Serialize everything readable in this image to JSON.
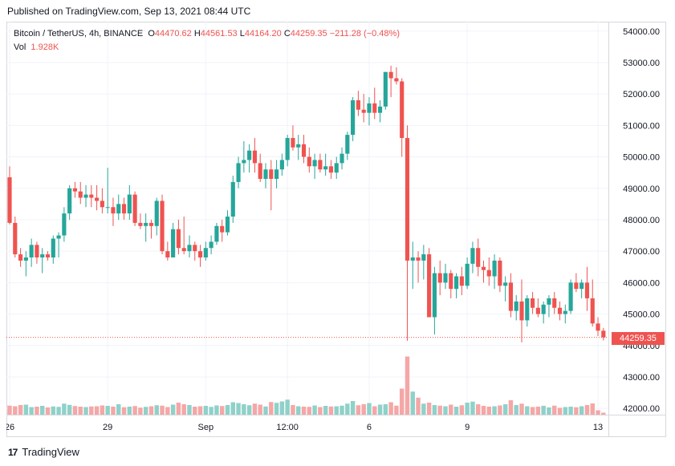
{
  "published": "Published on TradingView.com, Sep 13, 2021 08:44 UTC",
  "legend": {
    "symbol": "Bitcoin / TetherUS, 4h, BINANCE",
    "o_label": "O",
    "o": "44470.62",
    "h_label": "H",
    "h": "44561.53",
    "l_label": "L",
    "l": "44164.20",
    "c_label": "C",
    "c": "44259.35",
    "change": "−211.28 (−0.48%)",
    "vol_label": "Vol",
    "vol": "1.928K"
  },
  "last_price_label": "44259.35",
  "footer": {
    "logo": "17",
    "brand": "TradingView"
  },
  "colors": {
    "up": "#26a69a",
    "down": "#ef5350",
    "up_vol": "#8fd1c9",
    "down_vol": "#f4a7a6",
    "grid": "#f0f3fa",
    "text": "#131722"
  },
  "chart_data": {
    "type": "candlestick",
    "y_ticks": [
      "54000.00",
      "53000.00",
      "52000.00",
      "51000.00",
      "50000.00",
      "49000.00",
      "48000.00",
      "47000.00",
      "46000.00",
      "45000.00",
      "44000.00",
      "43000.00",
      "42000.00"
    ],
    "ylim": [
      41800,
      54300
    ],
    "x_ticks": [
      {
        "label": "26",
        "bar": 0
      },
      {
        "label": "29",
        "bar": 18
      },
      {
        "label": "Sep",
        "bar": 36
      },
      {
        "label": "12:00",
        "bar": 51
      },
      {
        "label": "6",
        "bar": 66
      },
      {
        "label": "9",
        "bar": 84
      },
      {
        "label": "13",
        "bar": 108
      }
    ],
    "candles": [
      [
        49350,
        49700,
        47850,
        47900
      ],
      [
        47900,
        48100,
        46800,
        46900
      ],
      [
        46900,
        47100,
        46500,
        46700
      ],
      [
        46700,
        47000,
        46200,
        46800
      ],
      [
        46800,
        47400,
        46500,
        47200
      ],
      [
        47200,
        47300,
        46600,
        46800
      ],
      [
        46800,
        47100,
        46300,
        46900
      ],
      [
        46900,
        47000,
        46700,
        46800
      ],
      [
        46800,
        47500,
        46600,
        47400
      ],
      [
        47400,
        47600,
        46800,
        47500
      ],
      [
        47500,
        48400,
        47300,
        48200
      ],
      [
        48200,
        49100,
        48000,
        49000
      ],
      [
        49000,
        49200,
        48700,
        48900
      ],
      [
        48900,
        49200,
        48500,
        48700
      ],
      [
        48700,
        49100,
        48400,
        48800
      ],
      [
        48800,
        49100,
        48400,
        48700
      ],
      [
        48700,
        49100,
        48300,
        48600
      ],
      [
        48600,
        49000,
        48200,
        48400
      ],
      [
        48400,
        49650,
        48200,
        48400
      ],
      [
        48400,
        48700,
        47800,
        48200
      ],
      [
        48200,
        48800,
        48000,
        48500
      ],
      [
        48500,
        48700,
        48000,
        48200
      ],
      [
        48200,
        49100,
        48000,
        48800
      ],
      [
        48800,
        48900,
        47800,
        47900
      ],
      [
        47900,
        48200,
        47700,
        47800
      ],
      [
        47800,
        48200,
        47300,
        47900
      ],
      [
        47900,
        48000,
        47400,
        47800
      ],
      [
        47800,
        48700,
        47500,
        48600
      ],
      [
        48600,
        48800,
        46900,
        47000
      ],
      [
        47000,
        47300,
        46700,
        46800
      ],
      [
        46800,
        47900,
        46800,
        47700
      ],
      [
        47700,
        48000,
        46900,
        47100
      ],
      [
        47100,
        48100,
        46900,
        47000
      ],
      [
        47000,
        47500,
        46800,
        47200
      ],
      [
        47200,
        47300,
        46700,
        47000
      ],
      [
        47000,
        47200,
        46500,
        46800
      ],
      [
        46800,
        47300,
        46700,
        47100
      ],
      [
        47100,
        47500,
        46900,
        47300
      ],
      [
        47300,
        47900,
        47200,
        47800
      ],
      [
        47800,
        48000,
        47300,
        47600
      ],
      [
        47600,
        48300,
        47500,
        48100
      ],
      [
        48100,
        49400,
        47900,
        49200
      ],
      [
        49200,
        50000,
        49000,
        49800
      ],
      [
        49800,
        50500,
        49500,
        49900
      ],
      [
        49900,
        50400,
        49500,
        50200
      ],
      [
        50200,
        50600,
        49500,
        49800
      ],
      [
        49800,
        50100,
        49200,
        49300
      ],
      [
        49300,
        49800,
        49000,
        49600
      ],
      [
        49600,
        49900,
        48300,
        49300
      ],
      [
        49300,
        49900,
        49000,
        49600
      ],
      [
        49600,
        50100,
        49400,
        49900
      ],
      [
        49900,
        50700,
        49700,
        50600
      ],
      [
        50600,
        51000,
        50200,
        50300
      ],
      [
        50300,
        50700,
        49900,
        50400
      ],
      [
        50400,
        50700,
        49800,
        50000
      ],
      [
        50000,
        50300,
        49500,
        49700
      ],
      [
        49700,
        50100,
        49300,
        49900
      ],
      [
        49900,
        50100,
        49500,
        49600
      ],
      [
        49600,
        50100,
        49400,
        49700
      ],
      [
        49700,
        49900,
        49300,
        49500
      ],
      [
        49500,
        50000,
        49300,
        49800
      ],
      [
        49800,
        50300,
        49600,
        50100
      ],
      [
        50100,
        50800,
        49900,
        50700
      ],
      [
        50700,
        51900,
        50500,
        51800
      ],
      [
        51800,
        52100,
        51300,
        51500
      ],
      [
        51500,
        52000,
        51100,
        51400
      ],
      [
        51400,
        51900,
        51000,
        51700
      ],
      [
        51700,
        52200,
        51200,
        51400
      ],
      [
        51400,
        51800,
        51100,
        51600
      ],
      [
        51600,
        52700,
        51500,
        52700
      ],
      [
        52700,
        52900,
        51900,
        52500
      ],
      [
        52500,
        52850,
        52300,
        52400
      ],
      [
        52400,
        52500,
        50000,
        50600
      ],
      [
        50600,
        51000,
        44150,
        46700
      ],
      [
        46700,
        47300,
        45800,
        46800
      ],
      [
        46800,
        47000,
        46000,
        46700
      ],
      [
        46700,
        47200,
        46100,
        46900
      ],
      [
        46900,
        47100,
        44900,
        44900
      ],
      [
        44900,
        46500,
        44350,
        46300
      ],
      [
        46300,
        46700,
        45600,
        46000
      ],
      [
        46000,
        46600,
        45800,
        46300
      ],
      [
        46300,
        46400,
        45500,
        45800
      ],
      [
        45800,
        46300,
        45500,
        46200
      ],
      [
        46200,
        46500,
        45600,
        45900
      ],
      [
        45900,
        46800,
        45800,
        46600
      ],
      [
        46600,
        47300,
        46300,
        47100
      ],
      [
        47100,
        47400,
        46200,
        46500
      ],
      [
        46500,
        46700,
        46000,
        46400
      ],
      [
        46400,
        46800,
        45900,
        46200
      ],
      [
        46200,
        46900,
        45800,
        46700
      ],
      [
        46700,
        46800,
        45700,
        45900
      ],
      [
        45900,
        46200,
        45400,
        46000
      ],
      [
        46000,
        46300,
        44900,
        45100
      ],
      [
        45100,
        45600,
        44800,
        45400
      ],
      [
        45400,
        46100,
        44100,
        44800
      ],
      [
        44800,
        45600,
        44600,
        45500
      ],
      [
        45500,
        45700,
        45000,
        45200
      ],
      [
        45200,
        45500,
        44900,
        45000
      ],
      [
        45000,
        45400,
        44700,
        45300
      ],
      [
        45300,
        45600,
        44900,
        45500
      ],
      [
        45500,
        45700,
        45000,
        45200
      ],
      [
        45200,
        45400,
        44800,
        45000
      ],
      [
        45000,
        45300,
        44700,
        45100
      ],
      [
        45100,
        46100,
        45000,
        46000
      ],
      [
        46000,
        46300,
        45700,
        45800
      ],
      [
        45800,
        46100,
        45500,
        46000
      ],
      [
        46000,
        46500,
        45100,
        45500
      ],
      [
        45500,
        46100,
        44600,
        44700
      ],
      [
        44700,
        44900,
        44300,
        44470
      ],
      [
        44470,
        44560,
        44160,
        44259
      ]
    ],
    "volumes": [
      0.45,
      0.42,
      0.48,
      0.5,
      0.38,
      0.4,
      0.44,
      0.36,
      0.41,
      0.39,
      0.55,
      0.49,
      0.43,
      0.4,
      0.38,
      0.41,
      0.42,
      0.46,
      0.44,
      0.4,
      0.52,
      0.37,
      0.4,
      0.43,
      0.35,
      0.39,
      0.42,
      0.47,
      0.45,
      0.38,
      0.5,
      0.6,
      0.52,
      0.48,
      0.4,
      0.42,
      0.44,
      0.39,
      0.46,
      0.43,
      0.48,
      0.62,
      0.58,
      0.52,
      0.47,
      0.55,
      0.5,
      0.41,
      0.63,
      0.59,
      0.66,
      0.75,
      0.48,
      0.42,
      0.4,
      0.39,
      0.46,
      0.38,
      0.44,
      0.41,
      0.42,
      0.45,
      0.55,
      0.68,
      0.47,
      0.52,
      0.58,
      0.42,
      0.5,
      0.52,
      0.62,
      0.45,
      1.3,
      2.9,
      1.15,
      0.85,
      0.55,
      0.6,
      0.48,
      0.45,
      0.42,
      0.5,
      0.4,
      0.47,
      0.6,
      0.65,
      0.52,
      0.44,
      0.4,
      0.42,
      0.46,
      0.52,
      0.72,
      0.48,
      0.55,
      0.42,
      0.38,
      0.4,
      0.44,
      0.36,
      0.45,
      0.34,
      0.38,
      0.4,
      0.37,
      0.42,
      0.48,
      0.56,
      0.22,
      0.1
    ]
  }
}
